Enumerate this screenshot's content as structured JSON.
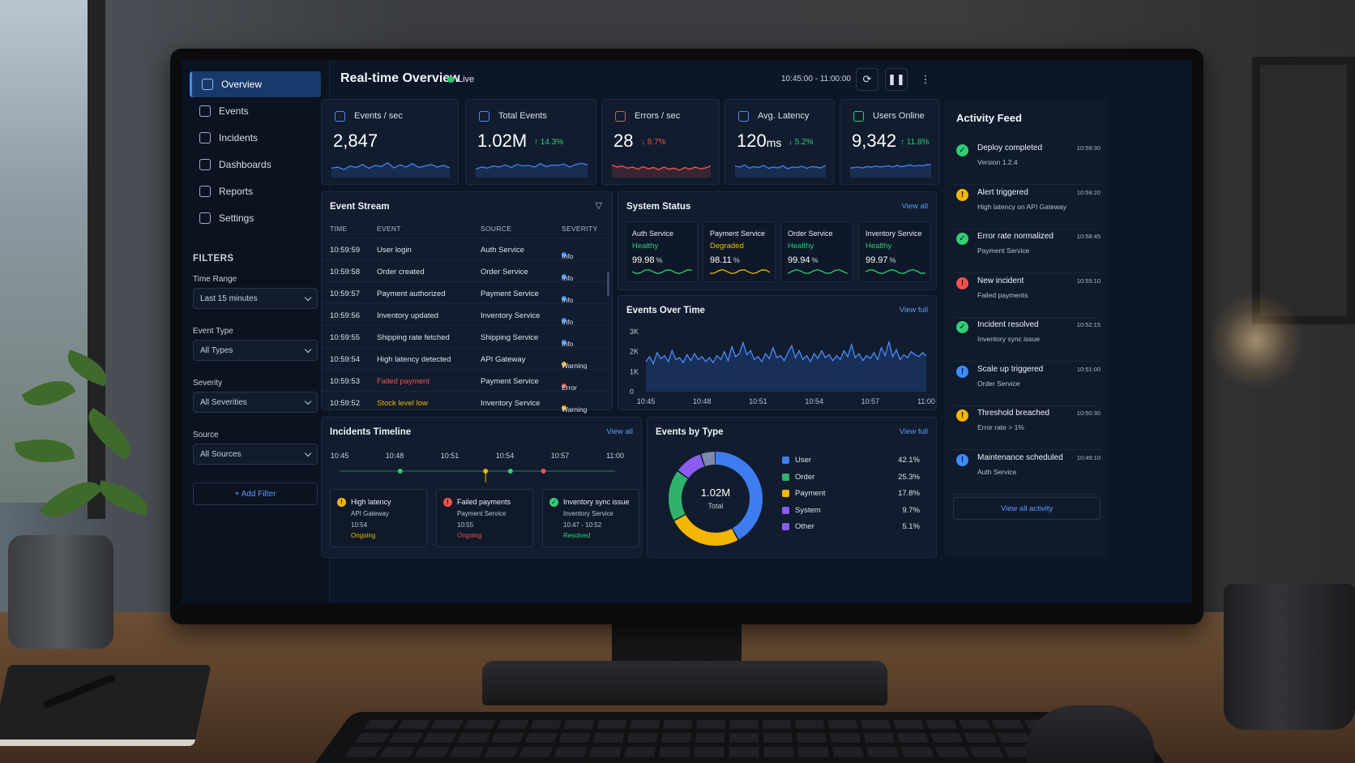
{
  "sidebar": {
    "items": [
      {
        "label": "Overview",
        "icon": "bar-chart-icon",
        "active": true
      },
      {
        "label": "Events",
        "icon": "events-icon"
      },
      {
        "label": "Incidents",
        "icon": "incidents-icon"
      },
      {
        "label": "Dashboards",
        "icon": "dashboards-icon"
      },
      {
        "label": "Reports",
        "icon": "reports-icon"
      },
      {
        "label": "Settings",
        "icon": "gear-icon"
      }
    ],
    "filters_title": "FILTERS",
    "filters": [
      {
        "label": "Time Range",
        "value": "Last 15 minutes"
      },
      {
        "label": "Event Type",
        "value": "All Types"
      },
      {
        "label": "Severity",
        "value": "All Severities"
      },
      {
        "label": "Source",
        "value": "All Sources"
      }
    ],
    "add_filter": "+ Add Filter"
  },
  "header": {
    "title": "Real-time Overview",
    "live": "Live",
    "time_range": "10:45:00 - 11:00:00",
    "refresh_icon": "refresh-icon",
    "pause_icon": "pause-icon",
    "more_icon": "more-vertical-icon"
  },
  "kpis": [
    {
      "label": "Events / sec",
      "value": "2,847",
      "unit": "",
      "change": "",
      "trend": [
        0.45,
        0.5,
        0.38,
        0.55,
        0.48,
        0.62,
        0.44,
        0.58,
        0.52,
        0.7,
        0.46,
        0.6,
        0.5,
        0.66,
        0.48,
        0.55,
        0.62,
        0.5,
        0.58,
        0.46
      ]
    },
    {
      "label": "Total Events",
      "value": "1.02M",
      "unit": "",
      "change": "↑ 14.3%",
      "trend": [
        0.4,
        0.5,
        0.45,
        0.55,
        0.5,
        0.6,
        0.48,
        0.62,
        0.55,
        0.58,
        0.5,
        0.66,
        0.52,
        0.6,
        0.58,
        0.64,
        0.5,
        0.62,
        0.68,
        0.6
      ]
    },
    {
      "label": "Errors / sec",
      "value": "28",
      "unit": "",
      "change": "↓ 8.7%",
      "trend": [
        0.6,
        0.5,
        0.55,
        0.45,
        0.5,
        0.4,
        0.52,
        0.42,
        0.48,
        0.38,
        0.5,
        0.4,
        0.45,
        0.35,
        0.48,
        0.4,
        0.5,
        0.42,
        0.46,
        0.55
      ]
    },
    {
      "label": "Avg. Latency",
      "value": "120",
      "unit": "ms",
      "change": "↓ 5.2%",
      "trend": [
        0.55,
        0.5,
        0.6,
        0.45,
        0.52,
        0.48,
        0.58,
        0.44,
        0.5,
        0.46,
        0.56,
        0.42,
        0.5,
        0.48,
        0.54,
        0.44,
        0.52,
        0.5,
        0.46,
        0.58
      ]
    },
    {
      "label": "Users Online",
      "value": "9,342",
      "unit": "",
      "change": "↑ 11.8%",
      "trend": [
        0.45,
        0.48,
        0.5,
        0.46,
        0.52,
        0.5,
        0.55,
        0.5,
        0.53,
        0.56,
        0.5,
        0.58,
        0.52,
        0.55,
        0.6,
        0.54,
        0.58,
        0.56,
        0.62,
        0.6
      ]
    }
  ],
  "event_stream": {
    "title": "Event Stream",
    "filter_icon": "filter-icon",
    "columns": [
      "TIME",
      "EVENT",
      "SOURCE",
      "SEVERITY"
    ],
    "rows": [
      {
        "time": "10:59:59",
        "event": "User login",
        "source": "Auth Service",
        "severity": "Info",
        "color": "#3d8bff",
        "event_color": "#dbe3ee"
      },
      {
        "time": "10:59:58",
        "event": "Order created",
        "source": "Order Service",
        "severity": "Info",
        "color": "#3d8bff",
        "event_color": "#dbe3ee"
      },
      {
        "time": "10:59:57",
        "event": "Payment authorized",
        "source": "Payment Service",
        "severity": "Info",
        "color": "#3d8bff",
        "event_color": "#dbe3ee"
      },
      {
        "time": "10:59:56",
        "event": "Inventory updated",
        "source": "Inventory Service",
        "severity": "Info",
        "color": "#3d8bff",
        "event_color": "#dbe3ee"
      },
      {
        "time": "10:59:55",
        "event": "Shipping rate fetched",
        "source": "Shipping Service",
        "severity": "Info",
        "color": "#3d8bff",
        "event_color": "#dbe3ee"
      },
      {
        "time": "10:59:54",
        "event": "High latency detected",
        "source": "API Gateway",
        "severity": "Warning",
        "color": "#f2b705",
        "event_color": "#dbe3ee"
      },
      {
        "time": "10:59:53",
        "event": "Failed payment",
        "source": "Payment Service",
        "severity": "Error",
        "color": "#f0524b",
        "event_color": "#f0524b"
      },
      {
        "time": "10:59:52",
        "event": "Stock level low",
        "source": "Inventory Service",
        "severity": "Warning",
        "color": "#f2b705",
        "event_color": "#f2b705"
      }
    ]
  },
  "system_status": {
    "title": "System Status",
    "view_all": "View all",
    "services": [
      {
        "name": "Auth Service",
        "state": "Healthy",
        "value": "99.98",
        "unit": "%",
        "color": "#2fcf74"
      },
      {
        "name": "Payment Service",
        "state": "Degraded",
        "value": "98.11",
        "unit": "%",
        "color": "#f2b705"
      },
      {
        "name": "Order Service",
        "state": "Healthy",
        "value": "99.94",
        "unit": "%",
        "color": "#2fcf74"
      },
      {
        "name": "Inventory Service",
        "state": "Healthy",
        "value": "99.97",
        "unit": "%",
        "color": "#2fcf74"
      }
    ]
  },
  "events_over_time": {
    "title": "Events Over Time",
    "view_full": "View full"
  },
  "chart_data": {
    "type": "line",
    "title": "Events Over Time",
    "xlabel": "",
    "ylabel": "",
    "x_ticks": [
      "10:45",
      "10:48",
      "10:51",
      "10:54",
      "10:57",
      "11:00"
    ],
    "y_ticks": [
      "0",
      "1K",
      "2K",
      "3K"
    ],
    "ylim": [
      0,
      3000
    ],
    "series": [
      {
        "values": [
          1500,
          1750,
          1400,
          1950,
          1650,
          1800,
          1500,
          2050,
          1600,
          1700,
          1450,
          1850,
          1550,
          1900,
          1600,
          1750,
          1500,
          1700,
          1450,
          1800,
          1600,
          2000,
          1550,
          2250,
          1750,
          1900,
          2450,
          1850,
          2050,
          1600,
          1750,
          1500,
          1900,
          1650,
          2200,
          1700,
          1800,
          1550,
          1950,
          2300,
          1700,
          2050,
          1600,
          1800,
          1500,
          1900,
          1650,
          2050,
          1700,
          1850,
          1550,
          1800,
          1600,
          2050,
          1750,
          2350,
          1700,
          1900,
          1550,
          1800,
          1650,
          1950,
          1600,
          2200,
          1800,
          2500,
          1750,
          2100,
          1600,
          1850,
          1700,
          2000,
          1850,
          1750,
          1950,
          1800
        ]
      }
    ],
    "grid": false,
    "legend": "none"
  },
  "incidents": {
    "title": "Incidents Timeline",
    "view_all": "View all",
    "ticks": [
      "10:45",
      "10:48",
      "10:51",
      "10:54",
      "10:57",
      "11:00"
    ],
    "cards": [
      {
        "title": "High latency",
        "source": "API Gateway",
        "time": "10:54",
        "status": "Ongoing",
        "color": "#f2b705",
        "status_color": "#f2b705",
        "icon": "warning-icon"
      },
      {
        "title": "Failed payments",
        "source": "Payment Service",
        "time": "10:55",
        "status": "Ongoing",
        "color": "#f0524b",
        "status_color": "#f0524b",
        "icon": "error-icon"
      },
      {
        "title": "Inventory sync issue",
        "source": "Inventory Service",
        "time": "10:47 - 10:52",
        "status": "Resolved",
        "color": "#2fcf74",
        "status_color": "#2fcf74",
        "icon": "check-icon"
      }
    ]
  },
  "events_by_type": {
    "title": "Events by Type",
    "view_full": "View full",
    "total_value": "1.02M",
    "total_label": "Total",
    "slices": [
      {
        "name": "User",
        "pct": "42.1%",
        "value": 42.1,
        "color": "#3d7df0"
      },
      {
        "name": "Order",
        "pct": "25.3%",
        "value": 25.3,
        "color": "#f2b705"
      },
      {
        "name": "Payment",
        "pct": "17.8%",
        "value": 17.8,
        "color": "#2fb36a"
      },
      {
        "name": "System",
        "pct": "9.7%",
        "value": 9.7,
        "color": "#8a5cf0"
      },
      {
        "name": "Other",
        "pct": "5.1%",
        "value": 5.1,
        "color": "#7a8aa8"
      }
    ],
    "legend_colors": [
      "#3d7df0",
      "#2fb36a",
      "#f2b705",
      "#8a5cf0",
      "#8a5cf0"
    ]
  },
  "activity_feed": {
    "title": "Activity Feed",
    "items": [
      {
        "title": "Deploy completed",
        "sub": "Version 1.2.4",
        "time": "10:59:30",
        "color": "#2fcf74",
        "glyph": "✓",
        "icon": "check-circle-icon"
      },
      {
        "title": "Alert triggered",
        "sub": "High latency on API Gateway",
        "time": "10:59:20",
        "color": "#f2b705",
        "glyph": "!",
        "icon": "warning-icon"
      },
      {
        "title": "Error rate normalized",
        "sub": "Payment Service",
        "time": "10:58:45",
        "color": "#2fcf74",
        "glyph": "✓",
        "icon": "check-circle-icon"
      },
      {
        "title": "New incident",
        "sub": "Failed payments",
        "time": "10:55:10",
        "color": "#f0524b",
        "glyph": "!",
        "icon": "error-icon"
      },
      {
        "title": "Incident resolved",
        "sub": "Inventory sync issue",
        "time": "10:52:15",
        "color": "#2fcf74",
        "glyph": "✓",
        "icon": "check-circle-icon"
      },
      {
        "title": "Scale up triggered",
        "sub": "Order Service",
        "time": "10:51:00",
        "color": "#3d8bff",
        "glyph": "!",
        "icon": "info-icon"
      },
      {
        "title": "Threshold breached",
        "sub": "Error rate > 1%",
        "time": "10:50:30",
        "color": "#f2b705",
        "glyph": "!",
        "icon": "warning-icon"
      },
      {
        "title": "Maintenance scheduled",
        "sub": "Auth Service",
        "time": "10:49:10",
        "color": "#3d8bff",
        "glyph": "!",
        "icon": "info-icon"
      }
    ],
    "view_all": "View all activity"
  }
}
